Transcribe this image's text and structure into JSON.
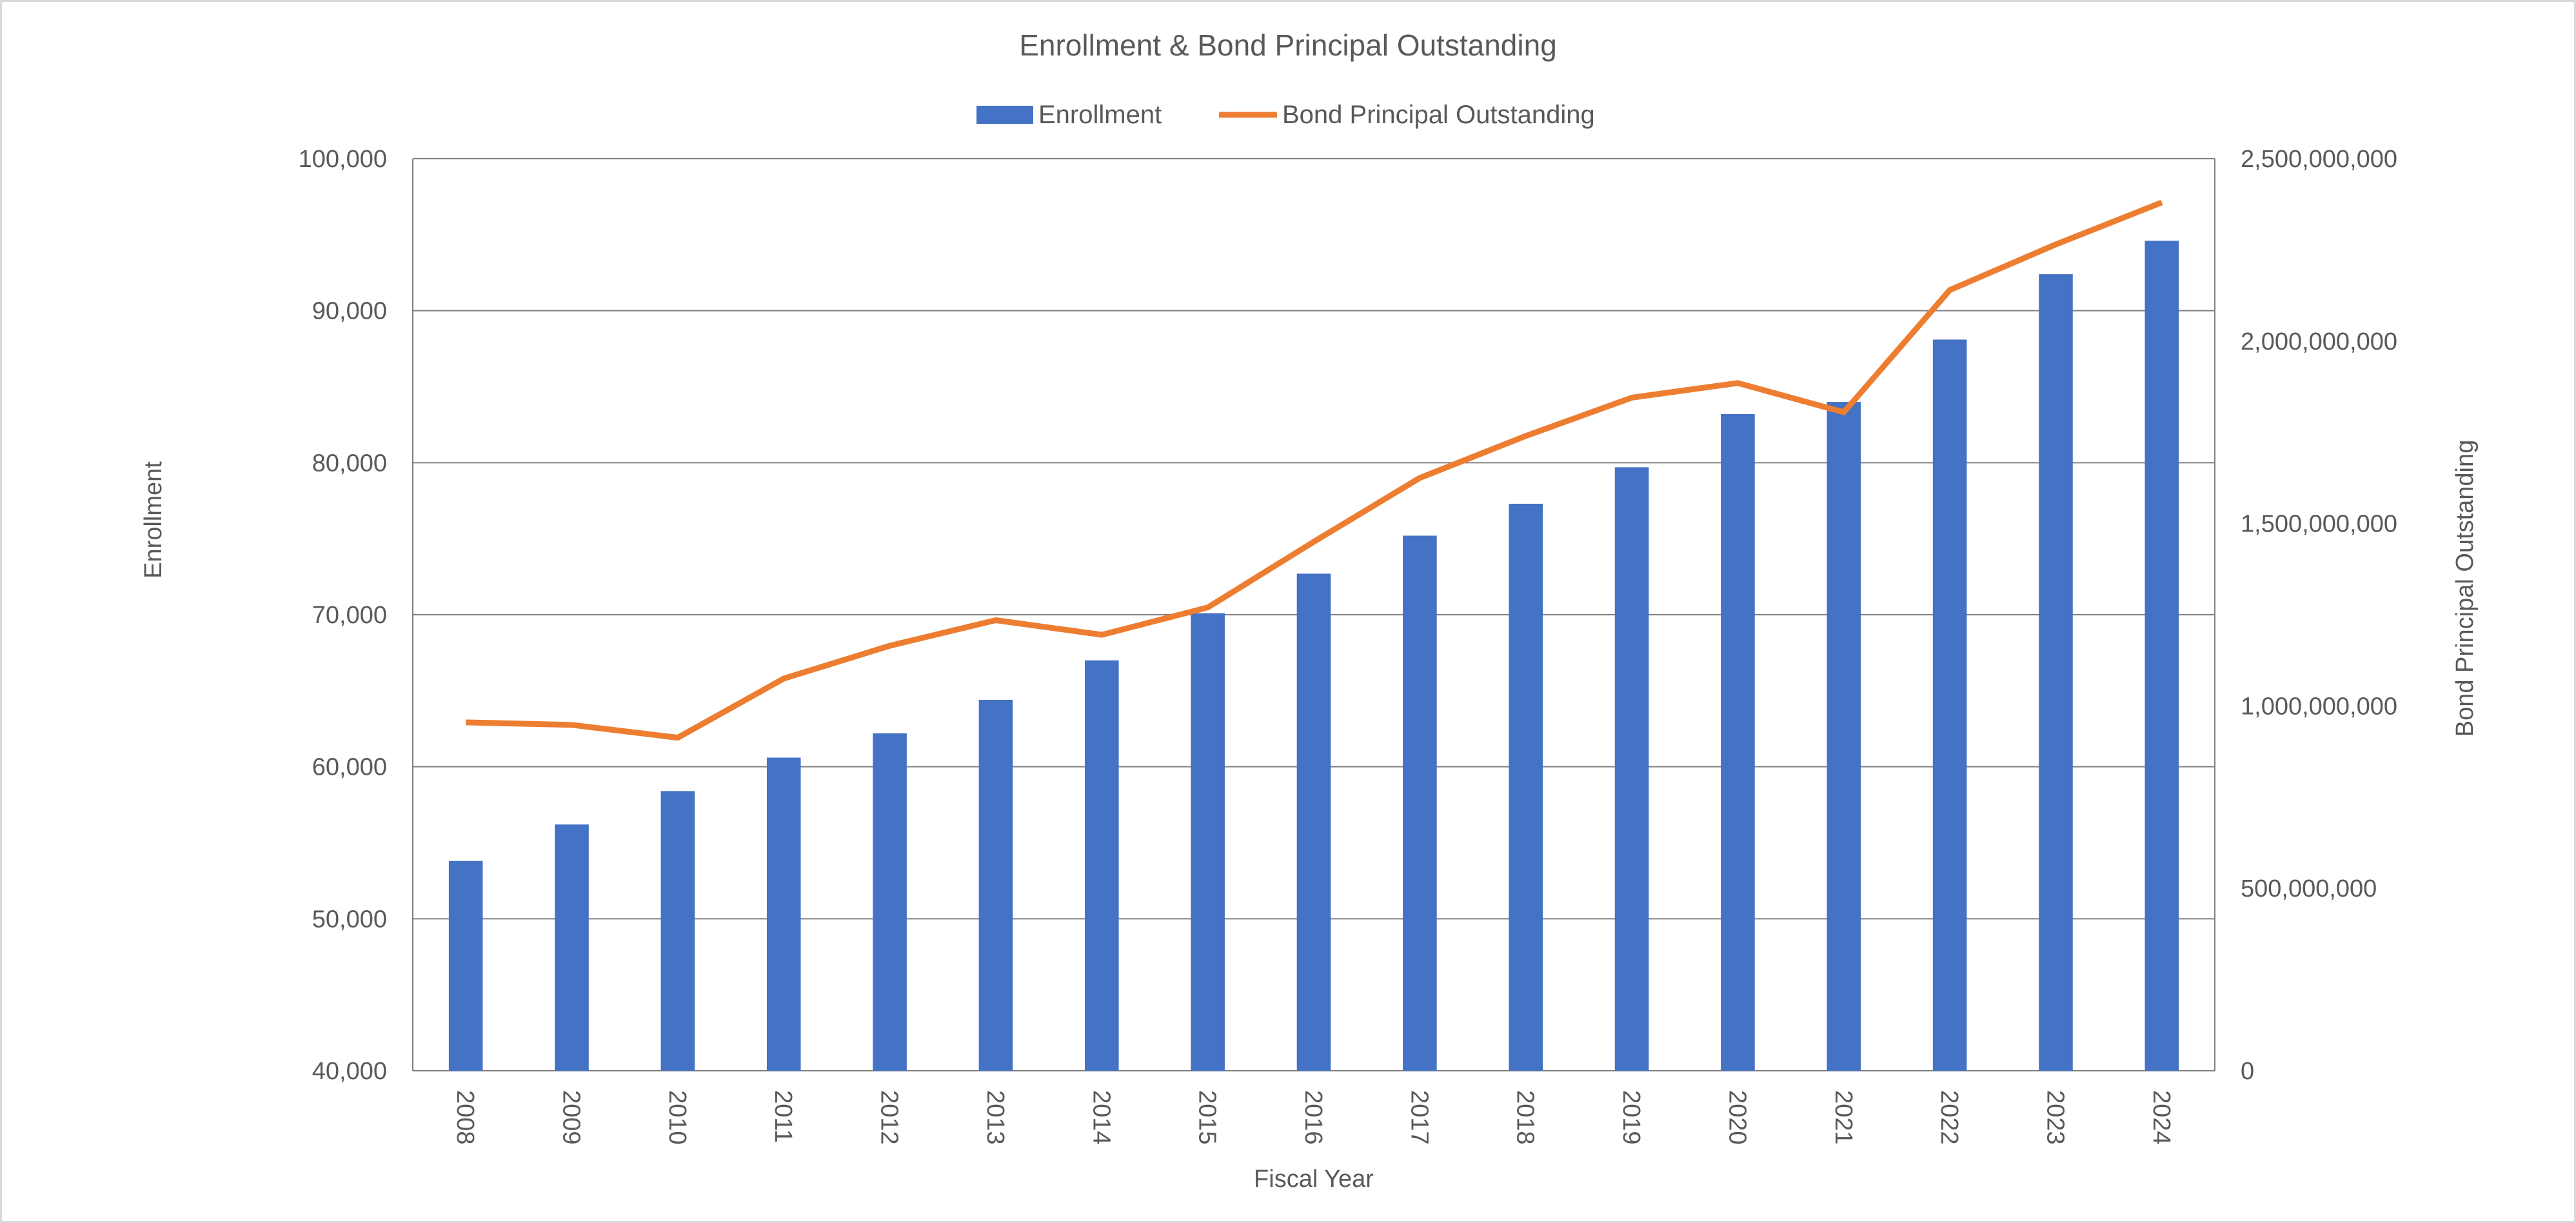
{
  "chart_data": {
    "type": "bar",
    "title": "Enrollment & Bond Principal Outstanding",
    "xlabel": "Fiscal Year",
    "ylabel": "Enrollment",
    "y2label": "Bond Principal Outstanding",
    "legend_position": "top-center",
    "grid": true,
    "categories": [
      "2008",
      "2009",
      "2010",
      "2011",
      "2012",
      "2013",
      "2014",
      "2015",
      "2016",
      "2017",
      "2018",
      "2019",
      "2020",
      "2021",
      "2022",
      "2023",
      "2024"
    ],
    "ylim": [
      40000,
      100000
    ],
    "y_ticks": [
      40000,
      50000,
      60000,
      70000,
      80000,
      90000,
      100000
    ],
    "y_tick_labels": [
      "40,000",
      "50,000",
      "60,000",
      "70,000",
      "80,000",
      "90,000",
      "100,000"
    ],
    "y2lim": [
      0,
      2500000000
    ],
    "y2_ticks": [
      0,
      500000000,
      1000000000,
      1500000000,
      2000000000,
      2500000000
    ],
    "y2_tick_labels": [
      "0",
      "500,000,000",
      "1,000,000,000",
      "1,500,000,000",
      "2,000,000,000",
      "2,500,000,000"
    ],
    "series": [
      {
        "name": "Enrollment",
        "type": "bar",
        "axis": "left",
        "color": "#4472c4",
        "values": [
          53800,
          56200,
          58400,
          60600,
          62200,
          64400,
          67000,
          70100,
          72700,
          75200,
          77300,
          79700,
          83200,
          84000,
          88100,
          92400,
          94600
        ]
      },
      {
        "name": "Bond Principal Outstanding",
        "type": "line",
        "axis": "right",
        "color": "#ed7d31",
        "values": [
          955000000,
          948000000,
          913000000,
          1075000000,
          1165000000,
          1235000000,
          1195000000,
          1270000000,
          1450000000,
          1625000000,
          1740000000,
          1845000000,
          1885000000,
          1805000000,
          2140000000,
          2265000000,
          2380000000
        ]
      }
    ]
  }
}
